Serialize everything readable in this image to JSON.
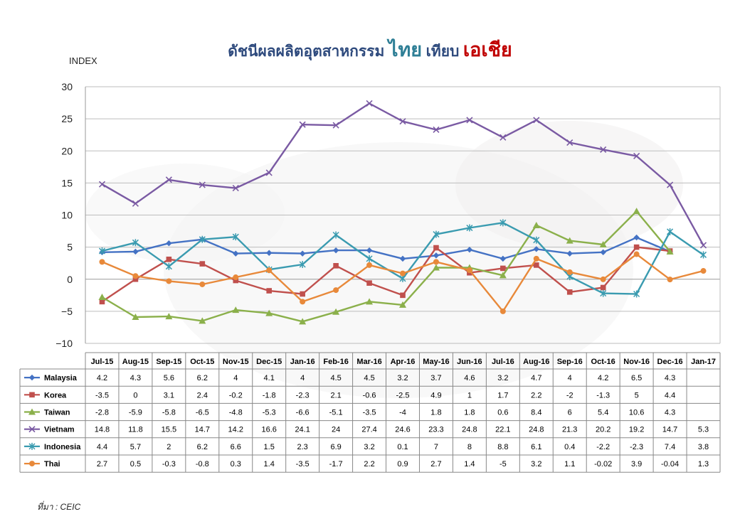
{
  "title": {
    "part1": "ดัชนีผลผลิตอุตสาหกรรม",
    "part2": "ไทย",
    "part3": "เทียบ",
    "part4": "เอเชีย"
  },
  "source": "ที่มา : CEIC",
  "colors": {
    "title_main": "#2e4a7d",
    "title_thai": "#2f7f96",
    "title_asia": "#c00000"
  },
  "chart_data": {
    "type": "line",
    "ylabel": "INDEX",
    "ylim": [
      -10,
      30
    ],
    "yticks": [
      30,
      25,
      20,
      15,
      10,
      5,
      0,
      -5,
      -10
    ],
    "grid": true,
    "legend": "data-table-below",
    "categories": [
      "Jul-15",
      "Aug-15",
      "Sep-15",
      "Oct-15",
      "Nov-15",
      "Dec-15",
      "Jan-16",
      "Feb-16",
      "Mar-16",
      "Apr-16",
      "May-16",
      "Jun-16",
      "Jul-16",
      "Aug-16",
      "Sep-16",
      "Oct-16",
      "Nov-16",
      "Dec-16",
      "Jan-17"
    ],
    "series": [
      {
        "name": "Malaysia",
        "color": "#4472c4",
        "marker": "diamond",
        "values": [
          4.2,
          4.3,
          5.6,
          6.2,
          4,
          4.1,
          4,
          4.5,
          4.5,
          3.2,
          3.7,
          4.6,
          3.2,
          4.7,
          4,
          4.2,
          6.5,
          4.3,
          null
        ],
        "labels": [
          "4.2",
          "4.3",
          "5.6",
          "6.2",
          "4",
          "4.1",
          "4",
          "4.5",
          "4.5",
          "3.2",
          "3.7",
          "4.6",
          "3.2",
          "4.7",
          "4",
          "4.2",
          "6.5",
          "4.3",
          ""
        ]
      },
      {
        "name": "Korea",
        "color": "#c0504d",
        "marker": "square",
        "values": [
          -3.5,
          0,
          3.1,
          2.4,
          -0.2,
          -1.8,
          -2.3,
          2.1,
          -0.6,
          -2.5,
          4.9,
          1,
          1.7,
          2.2,
          -2,
          -1.3,
          5,
          4.4,
          null
        ],
        "labels": [
          "-3.5",
          "0",
          "3.1",
          "2.4",
          "-0.2",
          "-1.8",
          "-2.3",
          "2.1",
          "-0.6",
          "-2.5",
          "4.9",
          "1",
          "1.7",
          "2.2",
          "-2",
          "-1.3",
          "5",
          "4.4",
          ""
        ]
      },
      {
        "name": "Taiwan",
        "color": "#8bb04b",
        "marker": "triangle",
        "values": [
          -2.8,
          -5.9,
          -5.8,
          -6.5,
          -4.8,
          -5.3,
          -6.6,
          -5.1,
          -3.5,
          -4,
          1.8,
          1.8,
          0.6,
          8.4,
          6,
          5.4,
          10.6,
          4.3,
          null
        ],
        "labels": [
          "-2.8",
          "-5.9",
          "-5.8",
          "-6.5",
          "-4.8",
          "-5.3",
          "-6.6",
          "-5.1",
          "-3.5",
          "-4",
          "1.8",
          "1.8",
          "0.6",
          "8.4",
          "6",
          "5.4",
          "10.6",
          "4.3",
          ""
        ]
      },
      {
        "name": "Vietnam",
        "color": "#7a5aa3",
        "marker": "x",
        "values": [
          14.8,
          11.8,
          15.5,
          14.7,
          14.2,
          16.6,
          24.1,
          24,
          27.4,
          24.6,
          23.3,
          24.8,
          22.1,
          24.8,
          21.3,
          20.2,
          19.2,
          14.7,
          5.3
        ],
        "labels": [
          "14.8",
          "11.8",
          "15.5",
          "14.7",
          "14.2",
          "16.6",
          "24.1",
          "24",
          "27.4",
          "24.6",
          "23.3",
          "24.8",
          "22.1",
          "24.8",
          "21.3",
          "20.2",
          "19.2",
          "14.7",
          "5.3"
        ]
      },
      {
        "name": "Indonesia",
        "color": "#3a9bb0",
        "marker": "star",
        "values": [
          4.4,
          5.7,
          2,
          6.2,
          6.6,
          1.5,
          2.3,
          6.9,
          3.2,
          0.1,
          7,
          8,
          8.8,
          6.1,
          0.4,
          -2.2,
          -2.3,
          7.4,
          3.8
        ],
        "labels": [
          "4.4",
          "5.7",
          "2",
          "6.2",
          "6.6",
          "1.5",
          "2.3",
          "6.9",
          "3.2",
          "0.1",
          "7",
          "8",
          "8.8",
          "6.1",
          "0.4",
          "-2.2",
          "-2.3",
          "7.4",
          "3.8"
        ]
      },
      {
        "name": "Thai",
        "color": "#e8893a",
        "marker": "circle",
        "values": [
          2.7,
          0.5,
          -0.3,
          -0.8,
          0.3,
          1.4,
          -3.5,
          -1.7,
          2.2,
          0.9,
          2.7,
          1.4,
          -5,
          3.2,
          1.1,
          -0.02,
          3.9,
          -0.04,
          1.3
        ],
        "labels": [
          "2.7",
          "0.5",
          "-0.3",
          "-0.8",
          "0.3",
          "1.4",
          "-3.5",
          "-1.7",
          "2.2",
          "0.9",
          "2.7",
          "1.4",
          "-5",
          "3.2",
          "1.1",
          "-0.02",
          "3.9",
          "-0.04",
          "1.3"
        ]
      }
    ]
  }
}
